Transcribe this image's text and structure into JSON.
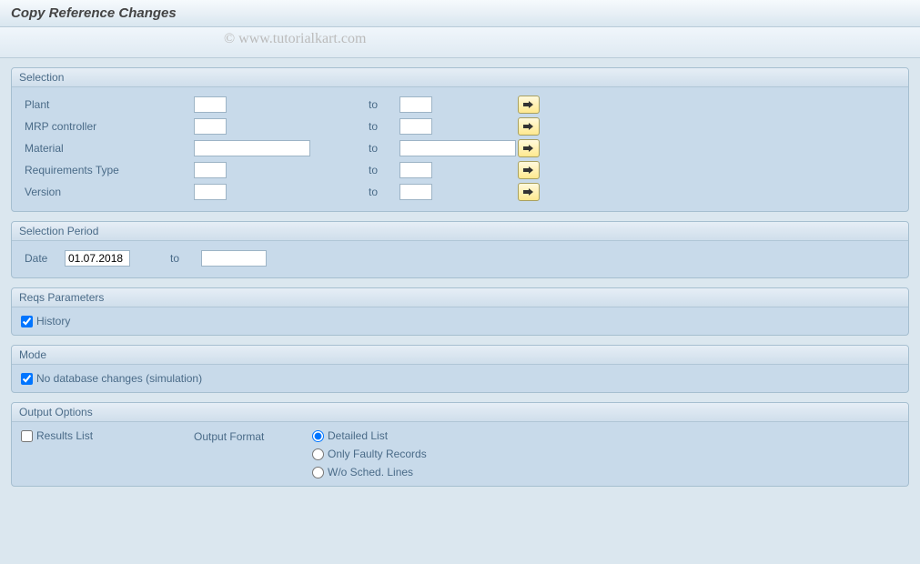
{
  "header": {
    "title": "Copy Reference Changes"
  },
  "watermark": "© www.tutorialkart.com",
  "colors": {
    "page_bg": "#dbe7ef",
    "group_bg": "#c8daea",
    "group_border": "#a6bfd0",
    "title_text": "#4a6b88",
    "input_border": "#9db4c6",
    "multi_btn_bg_top": "#fff9dd",
    "multi_btn_bg_bottom": "#ffe98f",
    "multi_btn_border": "#a8a060"
  },
  "selection": {
    "title": "Selection",
    "to_label": "to",
    "rows": [
      {
        "label": "Plant",
        "from": "",
        "to": "",
        "wide": false
      },
      {
        "label": "MRP controller",
        "from": "",
        "to": "",
        "wide": false
      },
      {
        "label": "Material",
        "from": "",
        "to": "",
        "wide": true
      },
      {
        "label": "Requirements Type",
        "from": "",
        "to": "",
        "wide": false
      },
      {
        "label": "Version",
        "from": "",
        "to": "",
        "wide": false
      }
    ]
  },
  "period": {
    "title": "Selection Period",
    "label": "Date",
    "from": "01.07.2018",
    "to_label": "to",
    "to": ""
  },
  "reqs": {
    "title": "Reqs Parameters",
    "history_label": "History",
    "history_checked": true
  },
  "mode": {
    "title": "Mode",
    "simulation_label": "No database changes (simulation)",
    "simulation_checked": true
  },
  "output": {
    "title": "Output Options",
    "results_list_label": "Results List",
    "results_list_checked": false,
    "format_label": "Output Format",
    "options": [
      {
        "label": "Detailed List",
        "value": "detailed",
        "checked": true
      },
      {
        "label": "Only Faulty Records",
        "value": "faulty",
        "checked": false
      },
      {
        "label": "W/o Sched. Lines",
        "value": "wo_sched",
        "checked": false
      }
    ]
  }
}
